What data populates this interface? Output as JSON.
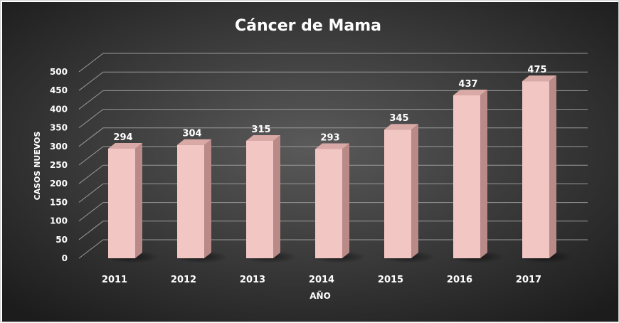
{
  "chart_data": {
    "type": "bar",
    "title": "Cáncer de Mama",
    "xlabel": "AÑO",
    "ylabel": "CASOS NUEVOS",
    "categories": [
      "2011",
      "2012",
      "2013",
      "2014",
      "2015",
      "2016",
      "2017"
    ],
    "values": [
      294,
      304,
      315,
      293,
      345,
      437,
      475
    ],
    "ylim": [
      0,
      500
    ],
    "yticks": [
      "0",
      "50",
      "100",
      "150",
      "200",
      "250",
      "300",
      "350",
      "400",
      "450",
      "500"
    ],
    "grid": true,
    "style": "3d-column",
    "colors": {
      "background_center": "#5a5a5a",
      "background_edge": "#1c1c1c",
      "bar_front": "#f2c6c3",
      "bar_side": "#b98a87",
      "bar_top": "#d9a9a6",
      "grid": "#9a9a9a",
      "text": "#ffffff"
    }
  }
}
